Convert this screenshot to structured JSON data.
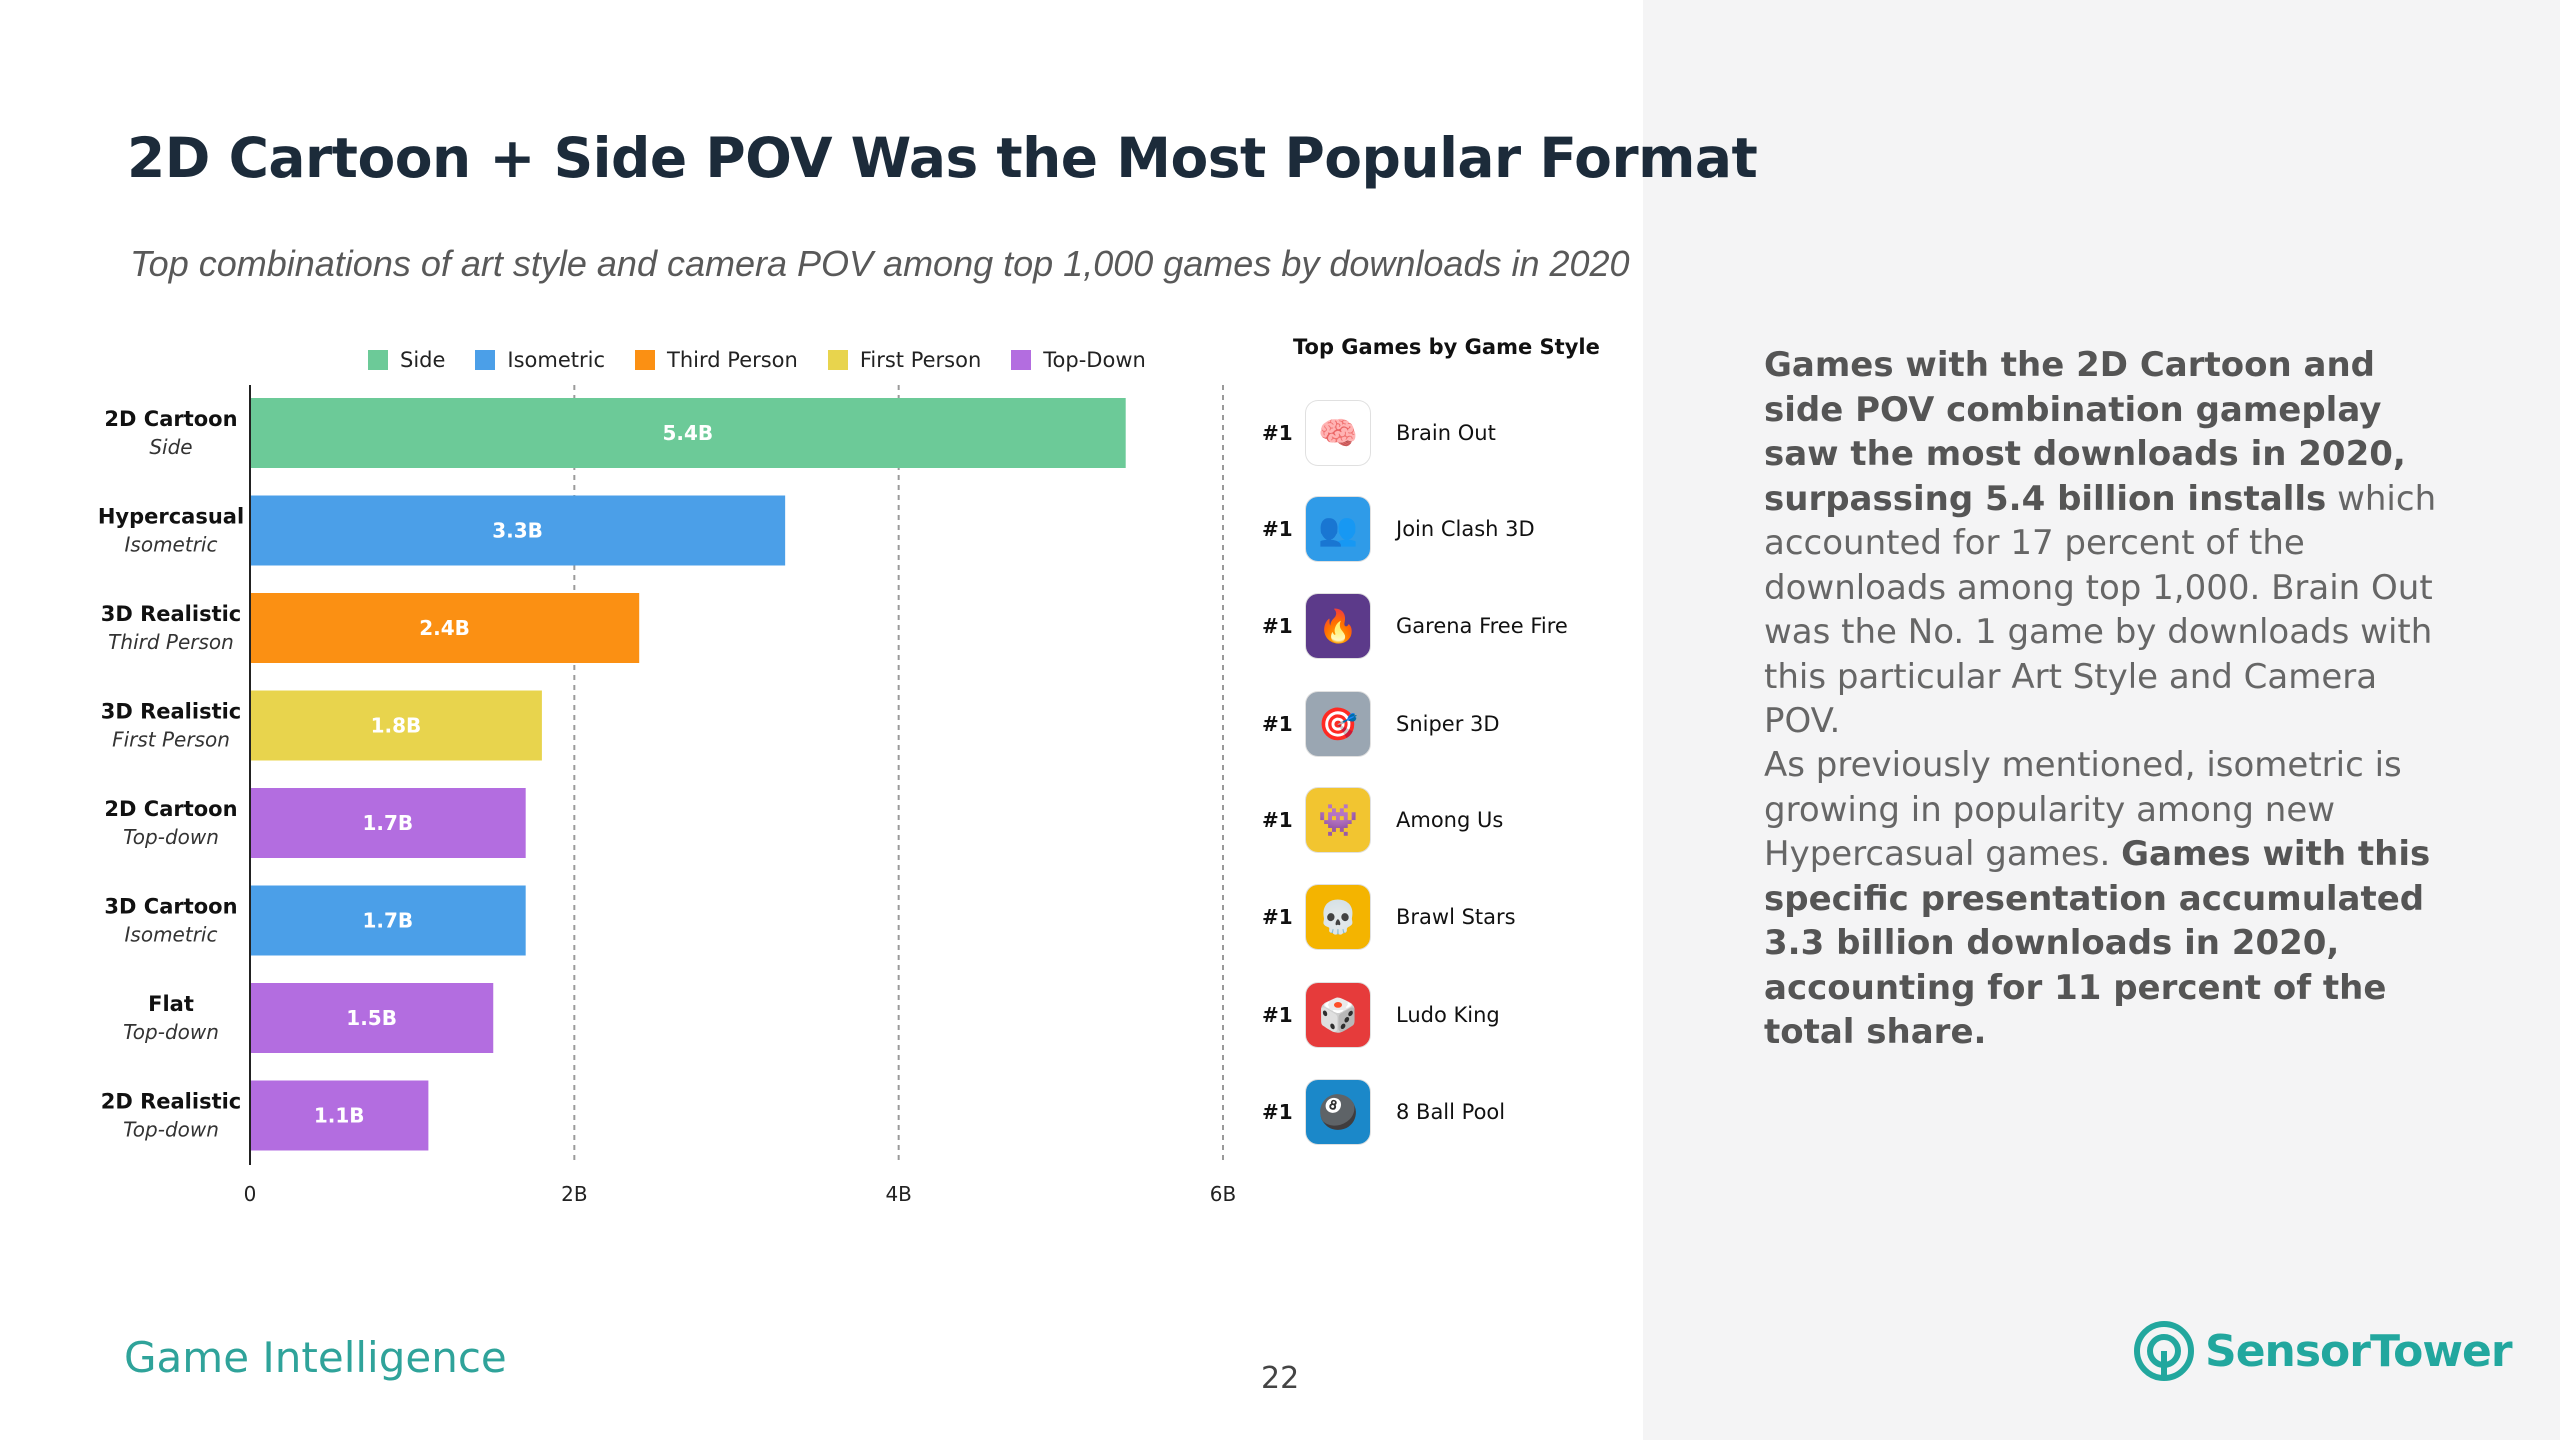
{
  "title": "2D Cartoon + Side POV Was the Most Popular Format",
  "subtitle": "Top combinations of art style and camera POV among top 1,000 games by downloads in 2020",
  "legend": [
    {
      "label": "Side",
      "color": "#6cca98"
    },
    {
      "label": "Isometric",
      "color": "#4b9fe8"
    },
    {
      "label": "Third Person",
      "color": "#fb9013"
    },
    {
      "label": "First Person",
      "color": "#e8d44d"
    },
    {
      "label": "Top-Down",
      "color": "#b36de0"
    }
  ],
  "chart_data": {
    "type": "bar",
    "orientation": "horizontal",
    "categories": [
      {
        "style": "2D Cartoon",
        "pov": "Side",
        "series": "Side"
      },
      {
        "style": "Hypercasual",
        "pov": "Isometric",
        "series": "Isometric"
      },
      {
        "style": "3D Realistic",
        "pov": "Third Person",
        "series": "Third Person"
      },
      {
        "style": "3D Realistic",
        "pov": "First Person",
        "series": "First Person"
      },
      {
        "style": "2D Cartoon",
        "pov": "Top-down",
        "series": "Top-Down"
      },
      {
        "style": "3D Cartoon",
        "pov": "Isometric",
        "series": "Isometric"
      },
      {
        "style": "Flat",
        "pov": "Top-down",
        "series": "Top-Down"
      },
      {
        "style": "2D Realistic",
        "pov": "Top-down",
        "series": "Top-Down"
      }
    ],
    "values": [
      5.4,
      3.3,
      2.4,
      1.8,
      1.7,
      1.7,
      1.5,
      1.1
    ],
    "value_labels": [
      "5.4B",
      "3.3B",
      "2.4B",
      "1.8B",
      "1.7B",
      "1.7B",
      "1.5B",
      "1.1B"
    ],
    "xlim": [
      0,
      6
    ],
    "xticks": [
      0,
      2,
      4,
      6
    ],
    "xtick_labels": [
      "0",
      "2B",
      "4B",
      "6B"
    ],
    "unit": "billion downloads",
    "legend_position": "top",
    "grid": "vertical dashed"
  },
  "top_games": {
    "header": "Top Games by Game Style",
    "items": [
      {
        "rank": "#1",
        "name": "Brain Out",
        "icon": "brain-icon",
        "glyph": "🧠",
        "bg": "#ffffff"
      },
      {
        "rank": "#1",
        "name": "Join Clash 3D",
        "icon": "crowd-icon",
        "glyph": "👥",
        "bg": "#2f9be8"
      },
      {
        "rank": "#1",
        "name": "Garena Free Fire",
        "icon": "fire-icon",
        "glyph": "🔥",
        "bg": "#5c3a8a"
      },
      {
        "rank": "#1",
        "name": "Sniper 3D",
        "icon": "crosshair-icon",
        "glyph": "🎯",
        "bg": "#9aa6b2"
      },
      {
        "rank": "#1",
        "name": "Among Us",
        "icon": "crewmate-icon",
        "glyph": "👾",
        "bg": "#f2c530"
      },
      {
        "rank": "#1",
        "name": "Brawl Stars",
        "icon": "skull-icon",
        "glyph": "💀",
        "bg": "#f4b400"
      },
      {
        "rank": "#1",
        "name": "Ludo King",
        "icon": "dice-icon",
        "glyph": "🎲",
        "bg": "#e63b3b"
      },
      {
        "rank": "#1",
        "name": "8 Ball Pool",
        "icon": "pool-ball-icon",
        "glyph": "🎱",
        "bg": "#1b88c9"
      }
    ]
  },
  "description": {
    "p1_bold": "Games with the 2D Cartoon and side POV combination gameplay saw the most downloads in 2020, surpassing 5.4 billion installs",
    "p1_rest": " which accounted for 17 percent of the downloads among top 1,000. Brain Out was the No. 1 game by downloads with this particular Art Style and Camera POV.",
    "p2_start": "As previously mentioned, isometric is growing in popularity among new Hypercasual games. ",
    "p2_bold": "Games with this specific presentation accumulated 3.3 billion downloads in 2020, accounting for 11 percent of the total share."
  },
  "footer": {
    "section": "Game Intelligence",
    "page": "22",
    "brand": "SensorTower"
  }
}
